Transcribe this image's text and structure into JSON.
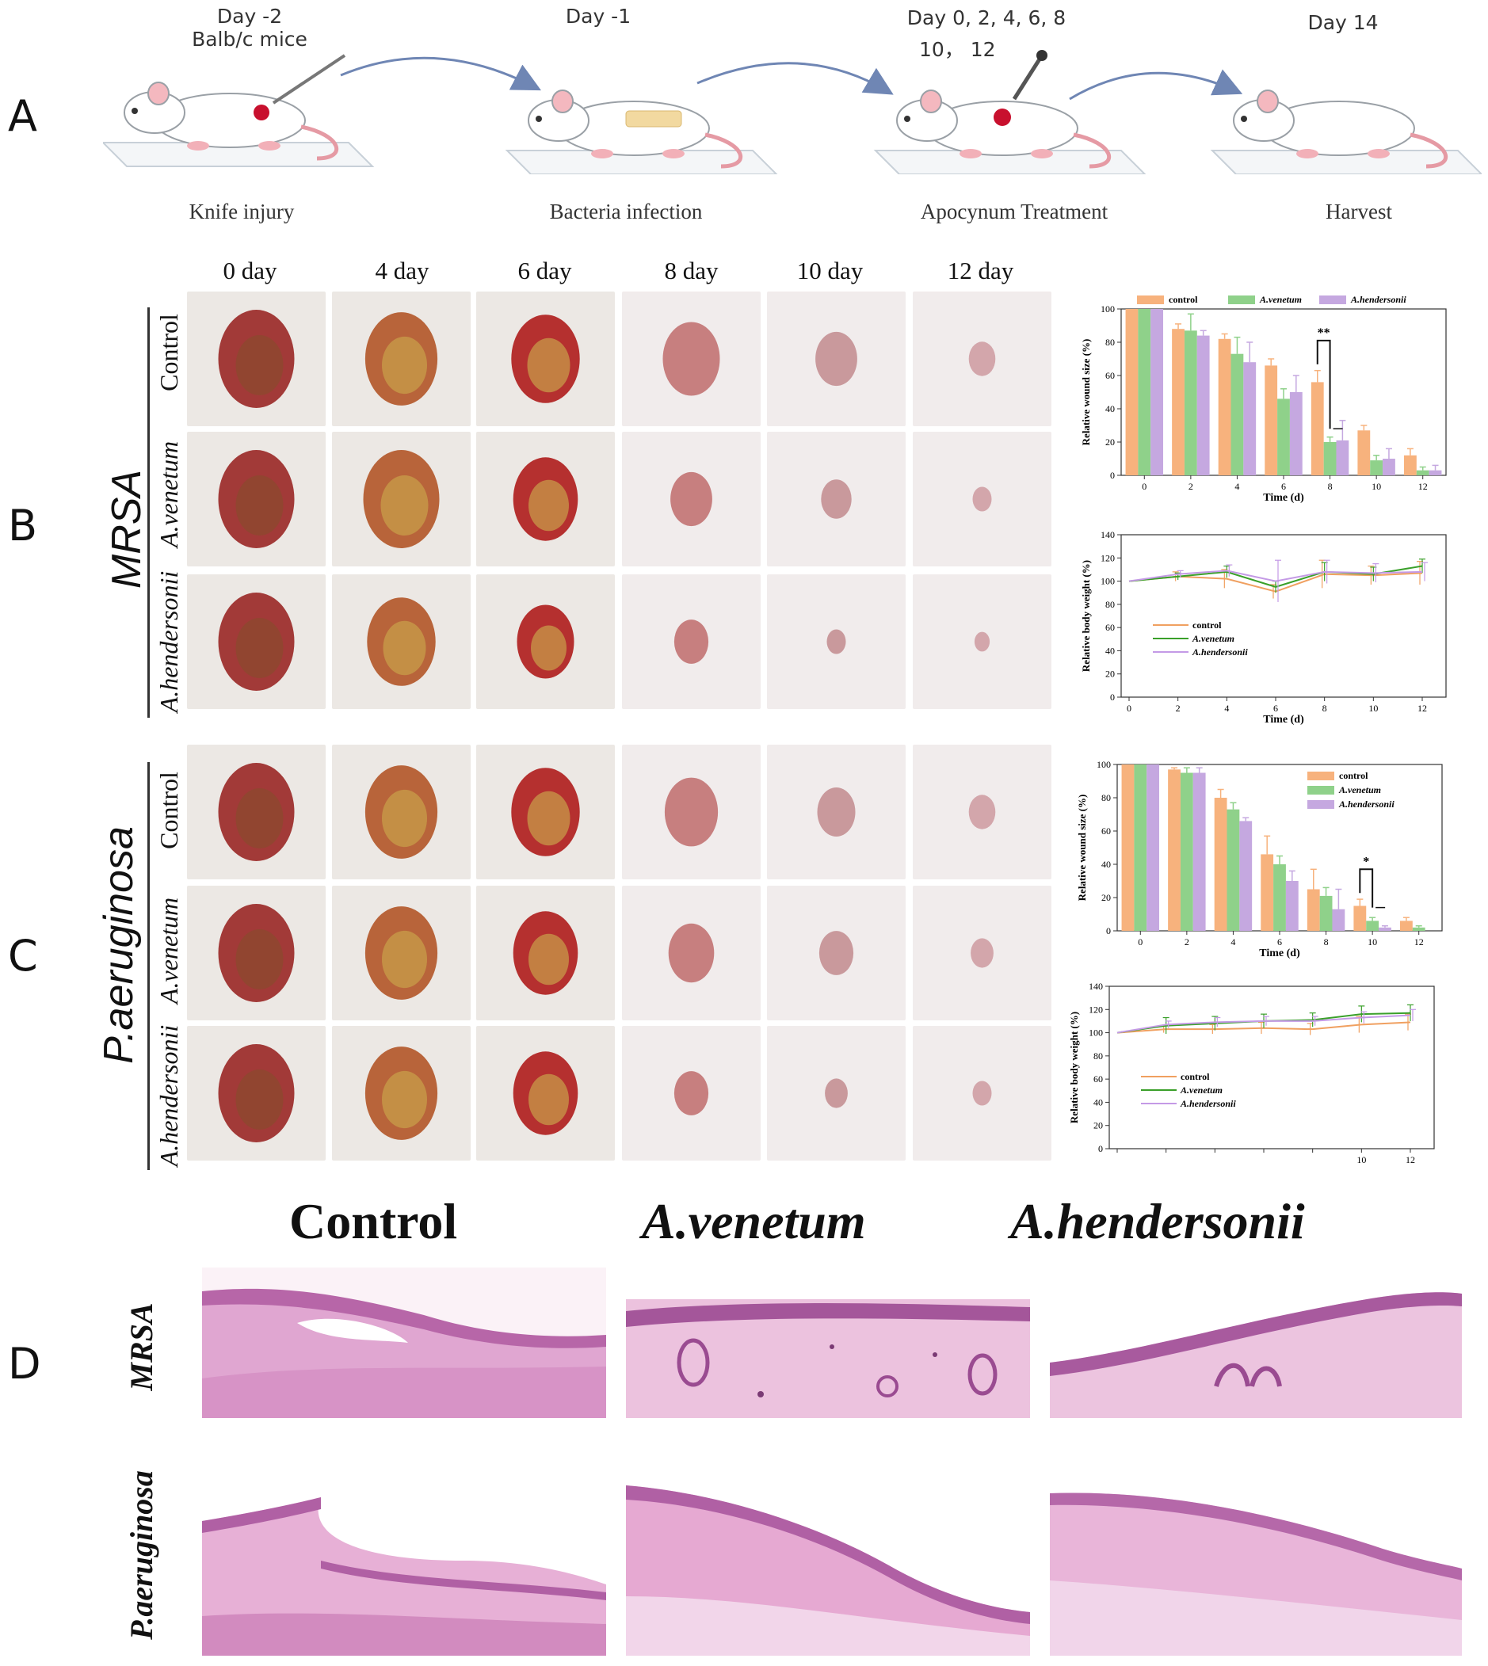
{
  "panel_letters": {
    "a": "A",
    "b": "B",
    "c": "C",
    "d": "D"
  },
  "schematic": {
    "days": [
      {
        "line1": "Day -2",
        "line2": "Balb/c mice"
      },
      {
        "line1": "Day -1",
        "line2": ""
      },
      {
        "line1": "Day 0, 2, 4, 6, 8",
        "line2": "10，  12"
      },
      {
        "line1": "Day 14",
        "line2": ""
      }
    ],
    "steps": [
      "Knife injury",
      "Bacteria infection",
      "Apocynum Treatment",
      "Harvest"
    ]
  },
  "day_columns": [
    "0 day",
    "4 day",
    "6 day",
    "8 day",
    "10 day",
    "12 day"
  ],
  "groups": {
    "b": {
      "name": "MRSA",
      "rows": [
        "Control",
        "A.venetum",
        "A.hendersonii"
      ]
    },
    "c": {
      "name": "P.aeruginosa",
      "rows": [
        "Control",
        "A.venetum",
        "A.hendersonii"
      ]
    }
  },
  "panel_d": {
    "columns": [
      "Control",
      "A.venetum",
      "A.hendersonii"
    ],
    "rows": [
      "MRSA",
      "P.aeruginosa"
    ]
  },
  "colors": {
    "control": "#f7b27d",
    "venetum": "#8fd18a",
    "hendersonii": "#c5a8e0",
    "control_line": "#f0a060",
    "venetum_line": "#3aa02a",
    "hendersonii_line": "#c49ae6"
  },
  "chart_data": [
    {
      "id": "b-wound",
      "type": "bar",
      "x": [
        0,
        2,
        4,
        6,
        8,
        10,
        12
      ],
      "xlabel": "Time (d)",
      "ylabel": "Relative wound size (%)",
      "ylim": [
        0,
        100
      ],
      "yticks": [
        0,
        20,
        40,
        60,
        80,
        100
      ],
      "legend": "top",
      "series": [
        {
          "name": "control",
          "values": [
            100,
            88,
            82,
            66,
            56,
            27,
            12
          ],
          "errors": [
            0,
            3,
            3,
            4,
            7,
            3,
            4
          ]
        },
        {
          "name": "A.venetum",
          "values": [
            100,
            87,
            73,
            46,
            20,
            9,
            3
          ],
          "errors": [
            0,
            10,
            10,
            6,
            3,
            3,
            2
          ]
        },
        {
          "name": "A.hendersonii",
          "values": [
            100,
            84,
            68,
            50,
            21,
            10,
            3
          ],
          "errors": [
            0,
            3,
            12,
            10,
            12,
            6,
            3
          ]
        }
      ],
      "significance": {
        "x": 8,
        "label": "**"
      }
    },
    {
      "id": "b-weight",
      "type": "line",
      "x": [
        0,
        2,
        4,
        6,
        8,
        10,
        12
      ],
      "xlabel": "Time (d)",
      "ylabel": "Relative body weight (%)",
      "ylim": [
        0,
        140
      ],
      "yticks": [
        0,
        20,
        40,
        60,
        80,
        100,
        120,
        140
      ],
      "legend": "center-left",
      "series": [
        {
          "name": "control",
          "values": [
            100,
            104,
            102,
            91,
            106,
            105,
            107
          ],
          "errors": [
            0,
            4,
            8,
            6,
            12,
            8,
            10
          ]
        },
        {
          "name": "A.venetum",
          "values": [
            100,
            104,
            108,
            95,
            108,
            106,
            113
          ],
          "errors": [
            0,
            3,
            5,
            5,
            8,
            6,
            6
          ]
        },
        {
          "name": "A.hendersonii",
          "values": [
            100,
            106,
            109,
            100,
            108,
            107,
            108
          ],
          "errors": [
            0,
            3,
            5,
            18,
            10,
            8,
            8
          ]
        }
      ]
    },
    {
      "id": "c-wound",
      "type": "bar",
      "x": [
        0,
        2,
        4,
        6,
        8,
        10,
        12
      ],
      "xlabel": "Time (d)",
      "ylabel": "Relative wound size (%)",
      "ylim": [
        0,
        100
      ],
      "yticks": [
        0,
        20,
        40,
        60,
        80,
        100
      ],
      "legend": "top-right",
      "series": [
        {
          "name": "control",
          "values": [
            100,
            97,
            80,
            46,
            25,
            15,
            6
          ],
          "errors": [
            0,
            1,
            5,
            11,
            12,
            4,
            2
          ]
        },
        {
          "name": "A.venetum",
          "values": [
            100,
            95,
            73,
            40,
            21,
            6,
            2
          ],
          "errors": [
            0,
            3,
            4,
            5,
            5,
            2,
            1
          ]
        },
        {
          "name": "A.hendersonii",
          "values": [
            100,
            95,
            66,
            30,
            13,
            2,
            0
          ],
          "errors": [
            0,
            3,
            2,
            6,
            12,
            1,
            0
          ]
        }
      ],
      "significance": {
        "x": 10,
        "label": "*"
      }
    },
    {
      "id": "c-weight",
      "type": "line",
      "x": [
        0,
        2,
        4,
        6,
        8,
        10,
        12
      ],
      "xlabel": "",
      "ylabel": "Relative body weight (%)",
      "ylim": [
        0,
        140
      ],
      "yticks": [
        0,
        20,
        40,
        60,
        80,
        100,
        120,
        140
      ],
      "xticklabels": [
        "",
        "",
        "",
        "",
        "",
        "10",
        "12"
      ],
      "legend": "center-left",
      "series": [
        {
          "name": "control",
          "values": [
            100,
            103,
            103,
            104,
            103,
            107,
            109
          ],
          "errors": [
            0,
            3,
            4,
            5,
            5,
            7,
            7
          ]
        },
        {
          "name": "A.venetum",
          "values": [
            100,
            106,
            108,
            110,
            111,
            116,
            117
          ],
          "errors": [
            0,
            7,
            6,
            6,
            6,
            7,
            7
          ]
        },
        {
          "name": "A.hendersonii",
          "values": [
            100,
            107,
            109,
            110,
            110,
            113,
            115
          ],
          "errors": [
            0,
            3,
            4,
            4,
            4,
            5,
            5
          ]
        }
      ]
    }
  ]
}
